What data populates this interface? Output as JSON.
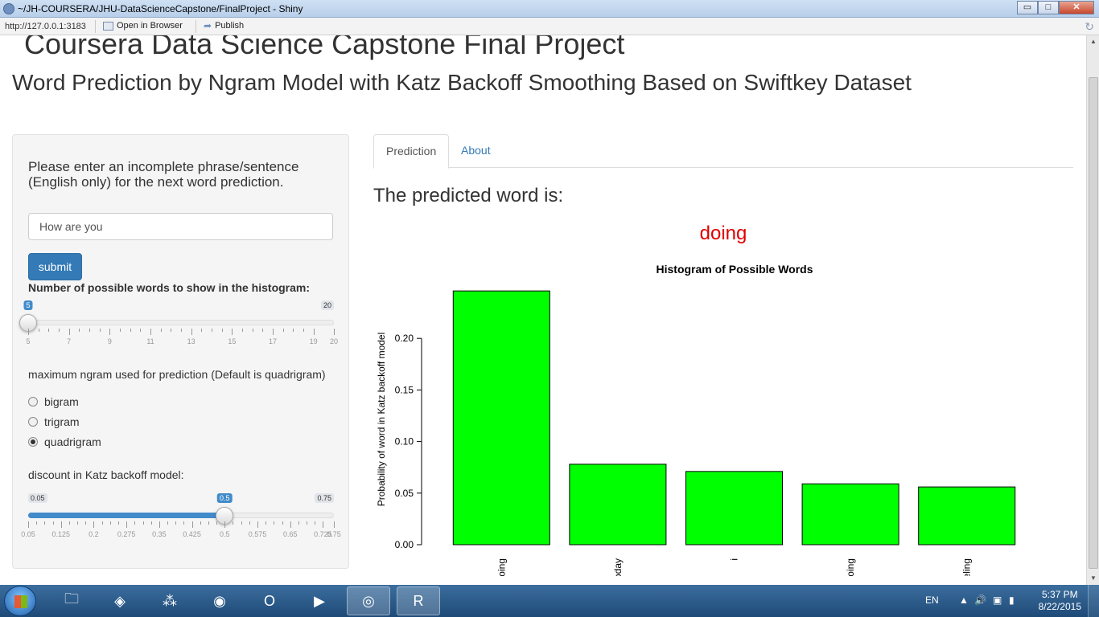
{
  "window": {
    "title": "~/JH-COURSERA/JHU-DataScienceCapstone/FinalProject - Shiny",
    "minimize_label": "▭",
    "maximize_label": "□",
    "close_label": "✕"
  },
  "toolbar": {
    "url": "http://127.0.0.1:3183",
    "open_in_browser_label": "Open in Browser",
    "publish_label": "Publish"
  },
  "page": {
    "title": "Coursera Data Science Capstone Final Project",
    "subtitle": "Word Prediction by Ngram Model with Katz Backoff Smoothing Based on Swiftkey Dataset"
  },
  "sidebar": {
    "prompt": "Please enter an incomplete phrase/sentence (English only) for the next word prediction.",
    "phrase_value": "How are you",
    "submit_label": "submit",
    "histogram_label": "Number of possible words to show in the histogram:",
    "words_slider": {
      "min": 5,
      "max": 20,
      "value": 5,
      "min_label": "5",
      "max_label": "20",
      "value_label": "5",
      "grid_labels": [
        "5",
        "7",
        "9",
        "11",
        "13",
        "15",
        "17",
        "19",
        "20"
      ]
    },
    "ngram_label": "maximum ngram used for prediction (Default is quadrigram)",
    "ngram_options": [
      {
        "label": "bigram",
        "checked": false
      },
      {
        "label": "trigram",
        "checked": false
      },
      {
        "label": "quadrigram",
        "checked": true
      }
    ],
    "discount_label": "discount in Katz backoff model:",
    "discount_slider": {
      "min": 0.05,
      "max": 0.75,
      "value": 0.5,
      "min_label": "0.05",
      "max_label": "0.75",
      "value_label": "0.5",
      "grid_labels": [
        "0.05",
        "0.125",
        "0.2",
        "0.275",
        "0.35",
        "0.425",
        "0.5",
        "0.575",
        "0.65",
        "0.725",
        "0.75"
      ]
    }
  },
  "main": {
    "tabs": [
      {
        "label": "Prediction",
        "active": true
      },
      {
        "label": "About",
        "active": false
      }
    ],
    "prediction_heading": "The predicted word is:",
    "predicted_word": "doing",
    "predicted_color": "#e00000"
  },
  "chart_data": {
    "type": "bar",
    "title": "Histogram of Possible Words",
    "xlabel": "",
    "ylabel": "Probability of word in Katz backoff model",
    "categories": [
      "doing",
      "today",
      "i",
      "going",
      "feeling"
    ],
    "values": [
      0.246,
      0.078,
      0.071,
      0.059,
      0.056
    ],
    "ylim": [
      0,
      0.25
    ],
    "yticks": [
      "0.00",
      "0.05",
      "0.10",
      "0.15",
      "0.20"
    ],
    "bar_color": "#00ff00",
    "grid": false
  },
  "taskbar": {
    "apps": [
      "file-explorer-icon",
      "virtualbox-icon",
      "app-dots-icon",
      "firefox-icon",
      "opera-icon",
      "media-player-icon",
      "chrome-icon",
      "r-icon"
    ],
    "lang": "EN",
    "time": "5:37 PM",
    "date": "8/22/2015"
  }
}
